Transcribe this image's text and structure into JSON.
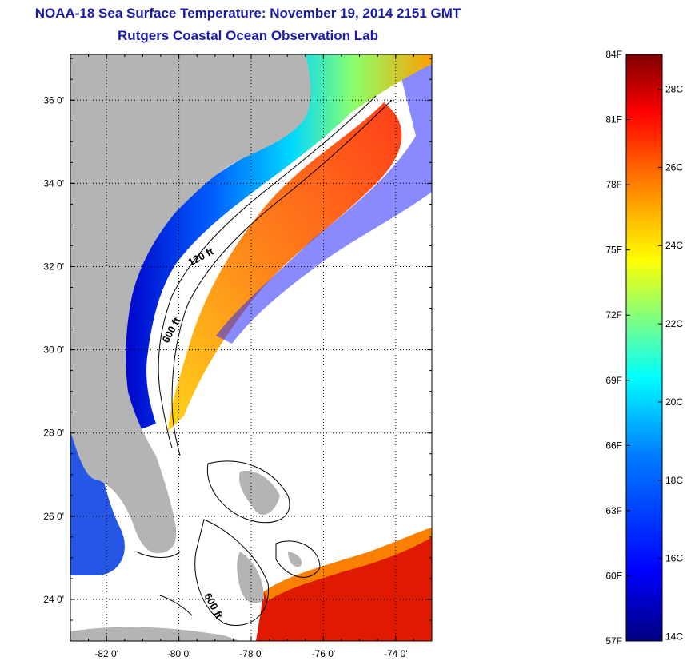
{
  "header": {
    "title": "NOAA-18 Sea Surface Temperature:  November 19, 2014 2151 GMT",
    "subtitle": "Rutgers Coastal Ocean Observation Lab"
  },
  "axes": {
    "lat_labels": [
      "36 0'",
      "34 0'",
      "32 0'",
      "30 0'",
      "28 0'",
      "26 0'",
      "24 0'"
    ],
    "lat_values": [
      36,
      34,
      32,
      30,
      28,
      26,
      24
    ],
    "lon_labels": [
      "-82 0'",
      "-80 0'",
      "-78 0'",
      "-76 0'",
      "-74 0'"
    ],
    "lon_values": [
      -82,
      -80,
      -78,
      -76,
      -74
    ],
    "lat_range": [
      23,
      37.1
    ],
    "lon_range": [
      -83,
      -73
    ]
  },
  "contours": {
    "label_120": "120 ft",
    "label_600_a": "600 ft",
    "label_600_b": "600 ft"
  },
  "colorbar": {
    "fahrenheit_labels": [
      "84F",
      "81F",
      "78F",
      "75F",
      "72F",
      "69F",
      "66F",
      "63F",
      "60F",
      "57F"
    ],
    "celsius_labels": [
      "28C",
      "26C",
      "24C",
      "22C",
      "20C",
      "18C",
      "16C",
      "14C"
    ],
    "range_f": [
      57,
      84
    ],
    "range_c": [
      14,
      29
    ],
    "colors": [
      "#00007f",
      "#0000ff",
      "#007fff",
      "#00ffff",
      "#7fff7f",
      "#ffff00",
      "#ff7f00",
      "#ff0000",
      "#7f0000"
    ]
  },
  "colors": {
    "land": "#b4b4b4",
    "title": "#1a1aa6",
    "ocean_nodata": "#ffffff"
  }
}
